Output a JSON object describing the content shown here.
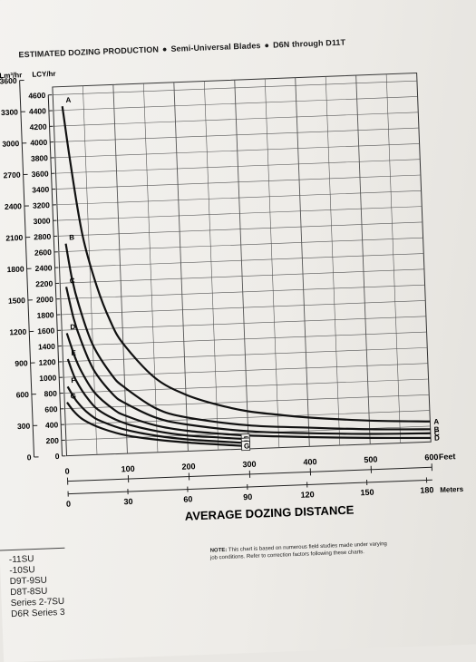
{
  "header": {
    "text": "ESTIMATED DOZING PRODUCTION",
    "subtitle": "Semi-Universal Blades",
    "series": "D6N through D11T",
    "bullet": "●"
  },
  "chart_data": {
    "type": "line",
    "y_unit_left": "Lm³/hr",
    "y_unit_right": "LCY/hr",
    "xlabel": "AVERAGE DOZING DISTANCE",
    "x_unit_feet": "Feet",
    "x_unit_meters": "Meters",
    "y_ticks_m3": [
      "3600",
      "3300",
      "3000",
      "2700",
      "2400",
      "2100",
      "1800",
      "1500",
      "1200",
      "900",
      "600",
      "300",
      "0"
    ],
    "y_ticks_lcy": [
      "4600",
      "4400",
      "4200",
      "4000",
      "3800",
      "3600",
      "3400",
      "3200",
      "3000",
      "2800",
      "2600",
      "2400",
      "2200",
      "2000",
      "1800",
      "1600",
      "1400",
      "1200",
      "1000",
      "800",
      "600",
      "400",
      "200",
      "0"
    ],
    "x_ticks_feet": [
      "0",
      "100",
      "200",
      "300",
      "400",
      "500",
      "600"
    ],
    "x_ticks_meters": [
      "0",
      "30",
      "60",
      "90",
      "120",
      "150",
      "180"
    ],
    "xlim_feet": [
      0,
      600
    ],
    "ylim_lcy": [
      0,
      4700
    ],
    "grid": true,
    "series": [
      {
        "name": "A",
        "x": [
          15,
          25,
          40,
          60,
          80,
          100,
          150,
          200,
          250,
          300,
          350,
          400,
          500,
          600
        ],
        "y": [
          4450,
          3700,
          2800,
          2150,
          1700,
          1400,
          950,
          720,
          580,
          480,
          420,
          370,
          300,
          260
        ]
      },
      {
        "name": "B",
        "x": [
          12,
          20,
          30,
          50,
          80,
          100,
          150,
          200,
          300,
          400,
          500,
          600
        ],
        "y": [
          2700,
          2250,
          1900,
          1400,
          1000,
          840,
          560,
          430,
          300,
          240,
          190,
          160
        ]
      },
      {
        "name": "C",
        "x": [
          10,
          20,
          30,
          50,
          80,
          100,
          150,
          200,
          300,
          400,
          500,
          600
        ],
        "y": [
          2150,
          1750,
          1480,
          1080,
          760,
          640,
          440,
          340,
          225,
          170,
          130,
          110
        ]
      },
      {
        "name": "D",
        "x": [
          8,
          20,
          30,
          50,
          80,
          100,
          150,
          200,
          250,
          300,
          400,
          500,
          600
        ],
        "y": [
          1560,
          1250,
          1060,
          790,
          570,
          480,
          340,
          260,
          210,
          170,
          120,
          80,
          50
        ]
      },
      {
        "name": "E",
        "x": [
          8,
          20,
          40,
          60,
          100,
          150,
          200,
          250,
          290
        ],
        "y": [
          1230,
          960,
          700,
          540,
          380,
          270,
          200,
          160,
          130
        ]
      },
      {
        "name": "F",
        "x": [
          6,
          20,
          40,
          60,
          100,
          150,
          200,
          250,
          290
        ],
        "y": [
          880,
          690,
          520,
          420,
          300,
          210,
          150,
          110,
          80
        ]
      },
      {
        "name": "G",
        "x": [
          4,
          15,
          30,
          60,
          100,
          150,
          200,
          250,
          290
        ],
        "y": [
          680,
          560,
          450,
          330,
          230,
          160,
          110,
          70,
          40
        ]
      }
    ],
    "curve_labels_end": [
      "A",
      "B",
      "C",
      "D"
    ],
    "curve_labels_mid": [
      "E",
      "F",
      "G"
    ]
  },
  "note": {
    "prefix": "NOTE:",
    "text": "This chart is based on numerous field studies made under varying job conditions. Refer to correction factors following these charts."
  },
  "models": [
    "-11SU",
    "-10SU",
    "D9T-9SU",
    "D8T-8SU",
    "Series 2-7SU",
    "D6R Series 3"
  ]
}
